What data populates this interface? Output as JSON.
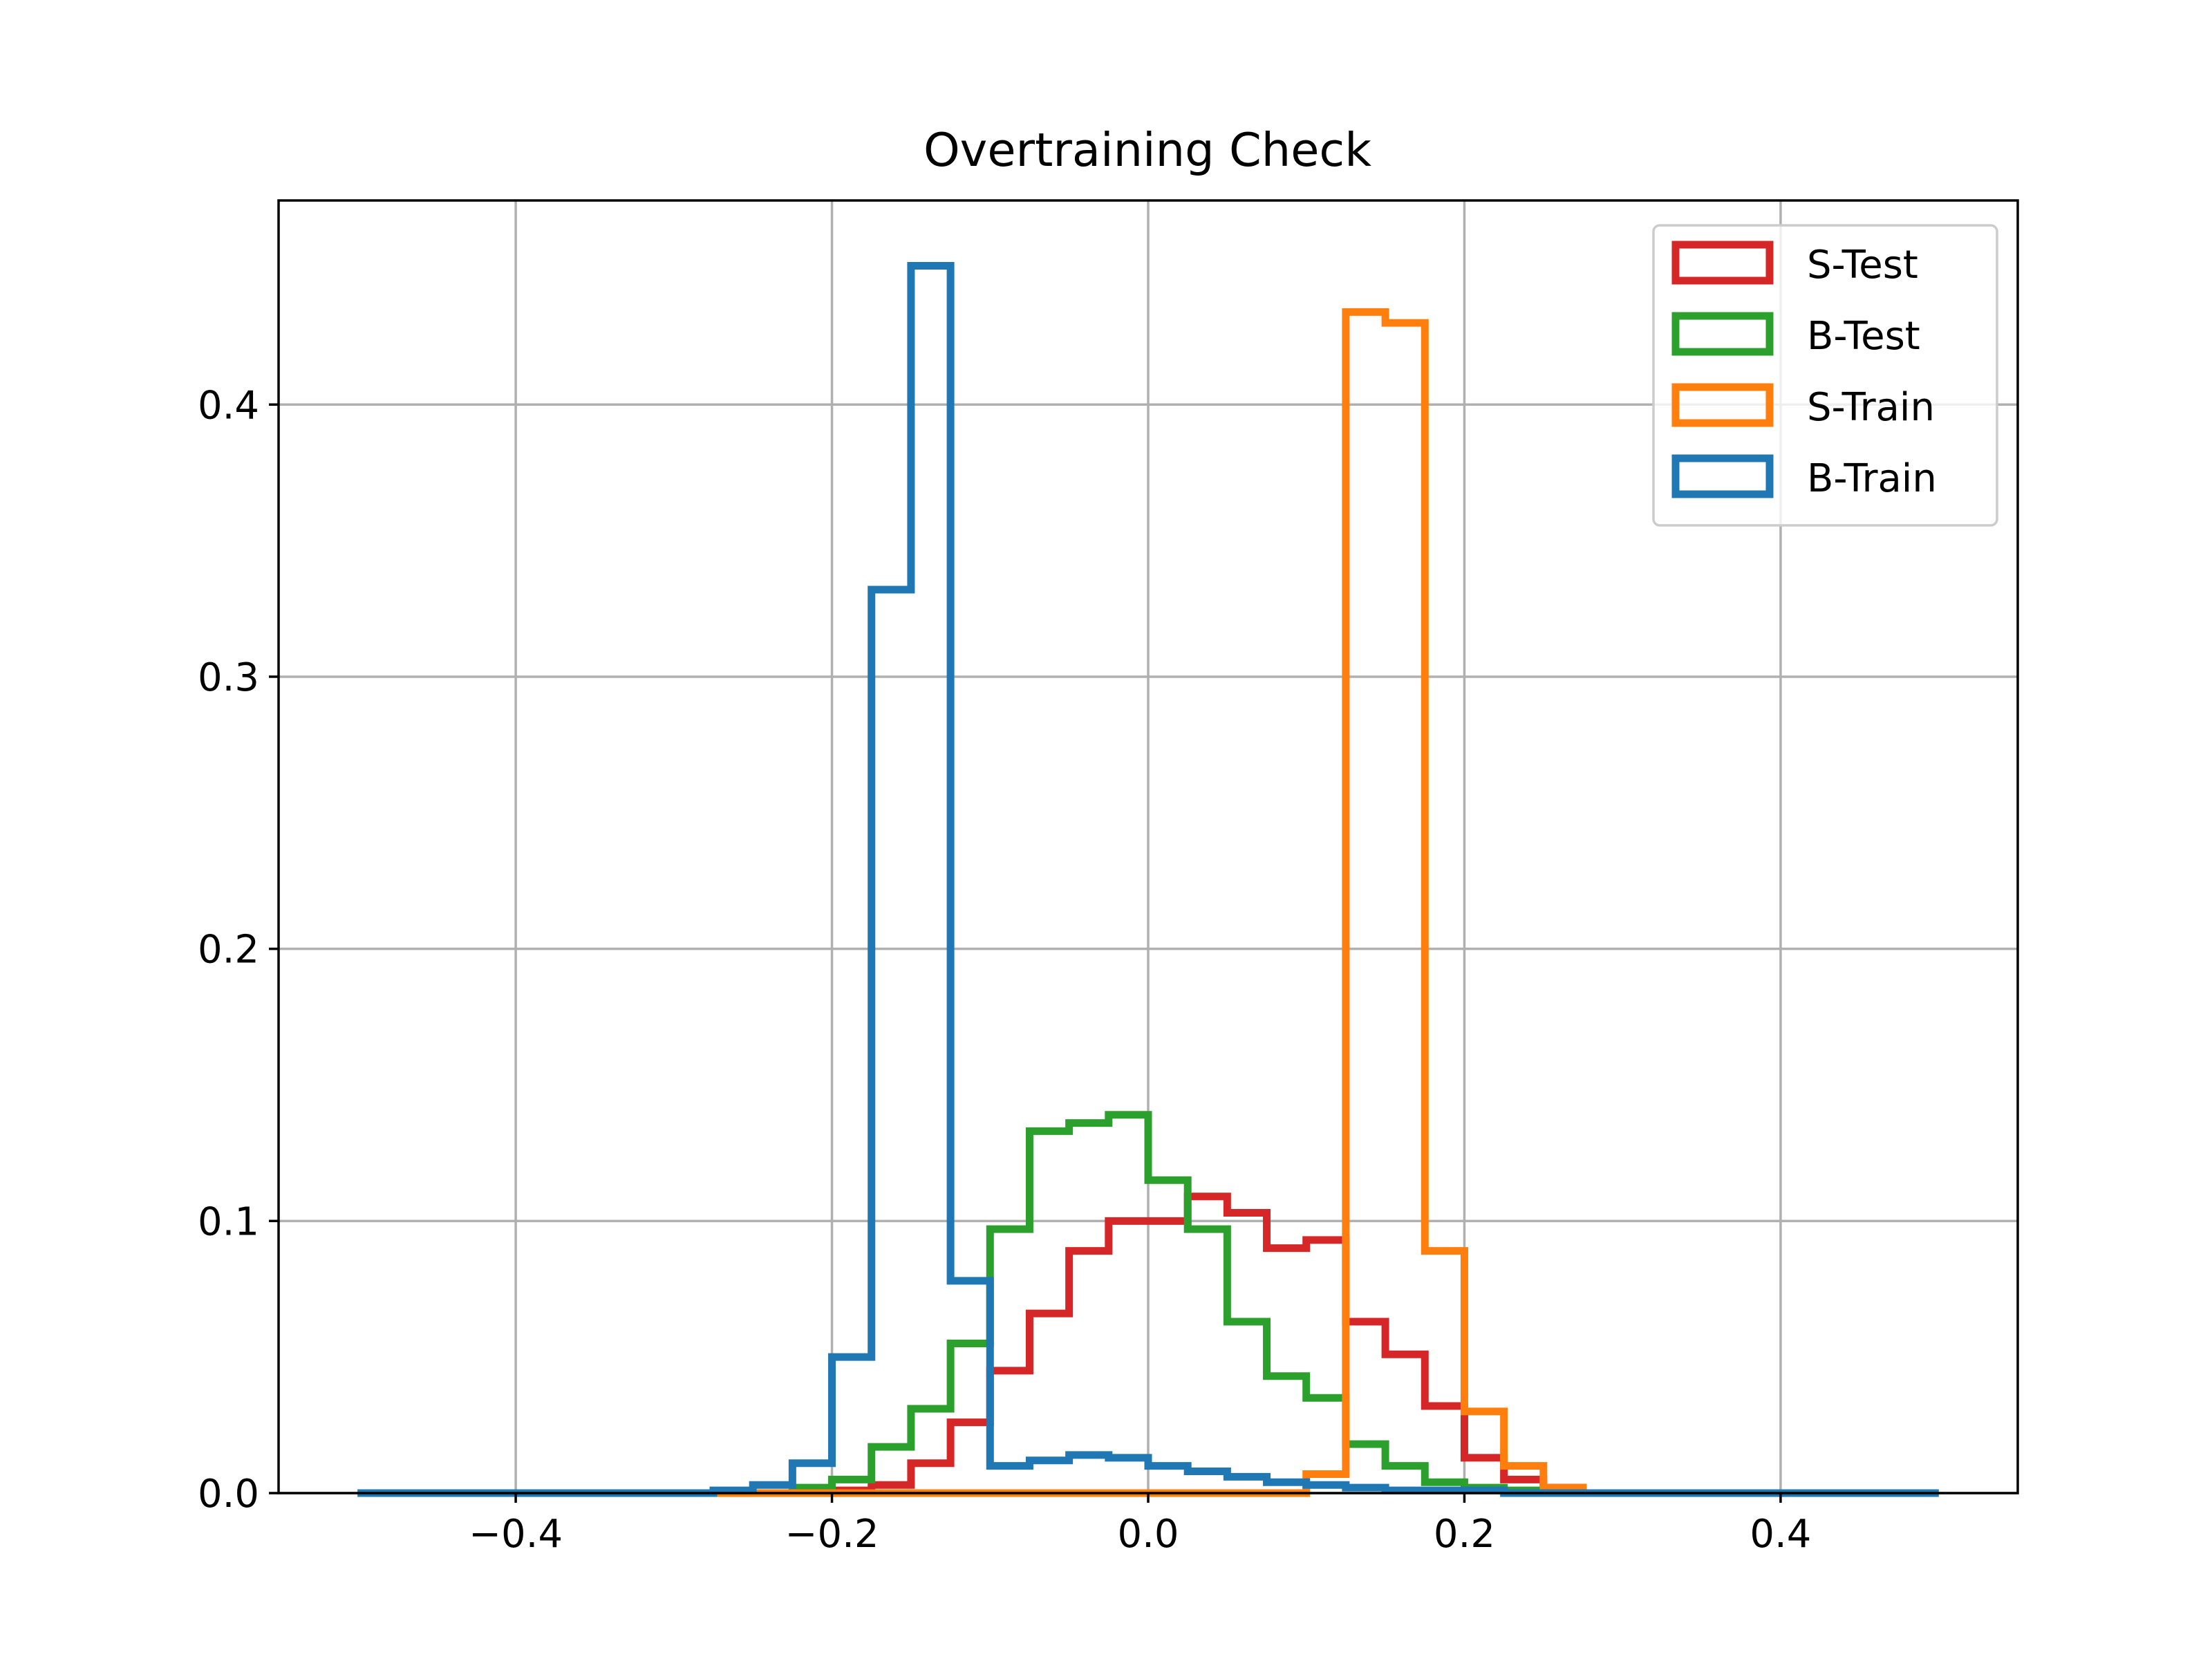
{
  "chart_data": {
    "type": "histogram",
    "title": "Overtraining Check",
    "xlabel": "",
    "ylabel": "",
    "xlim": [
      -0.55,
      0.55
    ],
    "ylim": [
      0.0,
      0.475
    ],
    "grid": true,
    "legend_position": "top-right",
    "x_ticks": [
      {
        "value": -0.4,
        "label": "−0.4"
      },
      {
        "value": -0.2,
        "label": "−0.2"
      },
      {
        "value": 0.0,
        "label": "0.0"
      },
      {
        "value": 0.2,
        "label": "0.2"
      },
      {
        "value": 0.4,
        "label": "0.4"
      }
    ],
    "y_ticks": [
      {
        "value": 0.0,
        "label": "0.0"
      },
      {
        "value": 0.1,
        "label": "0.1"
      },
      {
        "value": 0.2,
        "label": "0.2"
      },
      {
        "value": 0.3,
        "label": "0.3"
      },
      {
        "value": 0.4,
        "label": "0.4"
      }
    ],
    "bin_edges": [
      -0.5,
      -0.475,
      -0.45,
      -0.425,
      -0.4,
      -0.375,
      -0.35,
      -0.325,
      -0.3,
      -0.275,
      -0.25,
      -0.225,
      -0.2,
      -0.175,
      -0.15,
      -0.125,
      -0.1,
      -0.075,
      -0.05,
      -0.025,
      0.0,
      0.025,
      0.05,
      0.075,
      0.1,
      0.125,
      0.15,
      0.175,
      0.2,
      0.225,
      0.25,
      0.275,
      0.3,
      0.325,
      0.35,
      0.375,
      0.4,
      0.425,
      0.45,
      0.475,
      0.5
    ],
    "series": [
      {
        "name": "S-Test",
        "color": "#d62728",
        "values": [
          0,
          0,
          0,
          0,
          0,
          0,
          0,
          0,
          0,
          0,
          0,
          0,
          0.001,
          0.003,
          0.011,
          0.026,
          0.045,
          0.066,
          0.089,
          0.1,
          0.1,
          0.109,
          0.103,
          0.09,
          0.093,
          0.063,
          0.051,
          0.032,
          0.013,
          0.005,
          0.002,
          0,
          0,
          0,
          0,
          0,
          0,
          0,
          0,
          0
        ]
      },
      {
        "name": "B-Test",
        "color": "#2ca02c",
        "values": [
          0,
          0,
          0,
          0,
          0,
          0,
          0,
          0,
          0,
          0,
          0,
          0.002,
          0.005,
          0.017,
          0.031,
          0.055,
          0.097,
          0.133,
          0.136,
          0.139,
          0.115,
          0.097,
          0.063,
          0.043,
          0.035,
          0.018,
          0.01,
          0.004,
          0.002,
          0.001,
          0,
          0,
          0,
          0,
          0,
          0,
          0,
          0,
          0,
          0
        ]
      },
      {
        "name": "S-Train",
        "color": "#ff7f0e",
        "values": [
          0,
          0,
          0,
          0,
          0,
          0,
          0,
          0,
          0,
          0,
          0,
          0,
          0,
          0,
          0,
          0,
          0,
          0,
          0,
          0,
          0,
          0,
          0,
          0,
          0.007,
          0.434,
          0.43,
          0.089,
          0.03,
          0.01,
          0.002,
          0,
          0,
          0,
          0,
          0,
          0,
          0,
          0,
          0
        ]
      },
      {
        "name": "B-Train",
        "color": "#1f77b4",
        "values": [
          0,
          0,
          0,
          0,
          0,
          0,
          0,
          0,
          0,
          0.001,
          0.003,
          0.011,
          0.05,
          0.332,
          0.451,
          0.078,
          0.01,
          0.012,
          0.014,
          0.013,
          0.01,
          0.008,
          0.006,
          0.004,
          0.003,
          0.002,
          0.001,
          0.001,
          0.001,
          0,
          0,
          0,
          0,
          0,
          0,
          0,
          0,
          0,
          0,
          0
        ]
      }
    ]
  }
}
